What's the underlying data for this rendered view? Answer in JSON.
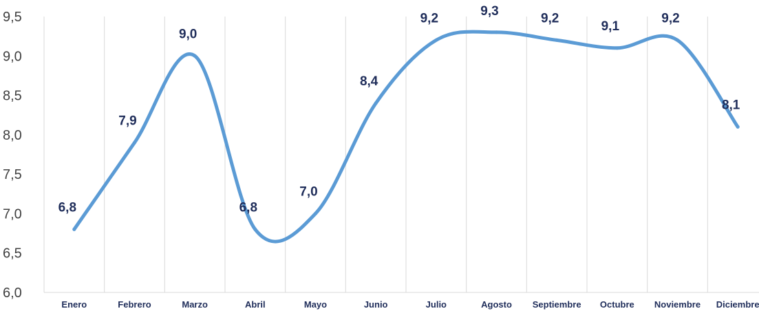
{
  "chart_data": {
    "type": "line",
    "categories": [
      "Enero",
      "Febrero",
      "Marzo",
      "Abril",
      "Mayo",
      "Junio",
      "Julio",
      "Agosto",
      "Septiembre",
      "Octubre",
      "Noviembre",
      "Diciembre"
    ],
    "series": [
      {
        "values": [
          6.8,
          7.9,
          9.0,
          6.8,
          7.0,
          8.4,
          9.2,
          9.3,
          9.2,
          9.1,
          9.2,
          8.1
        ],
        "labels": [
          "6,8",
          "7,9",
          "9,0",
          "6,8",
          "7,0",
          "8,4",
          "9,2",
          "9,3",
          "9,2",
          "9,1",
          "9,2",
          "8,1"
        ]
      }
    ],
    "ylim": [
      6.0,
      9.5
    ],
    "yticks": [
      6.0,
      6.5,
      7.0,
      7.5,
      8.0,
      8.5,
      9.0,
      9.5
    ],
    "ytick_labels": [
      "6,0",
      "6,5",
      "7,0",
      "7,5",
      "8,0",
      "8,5",
      "9,0",
      "9,5"
    ],
    "title": "",
    "xlabel": "",
    "ylabel": "",
    "grid": "vertical",
    "legend": "none",
    "line_color": "#5b9bd5",
    "label_color": "#1f2d5a",
    "grid_color": "#d9d9d9"
  }
}
